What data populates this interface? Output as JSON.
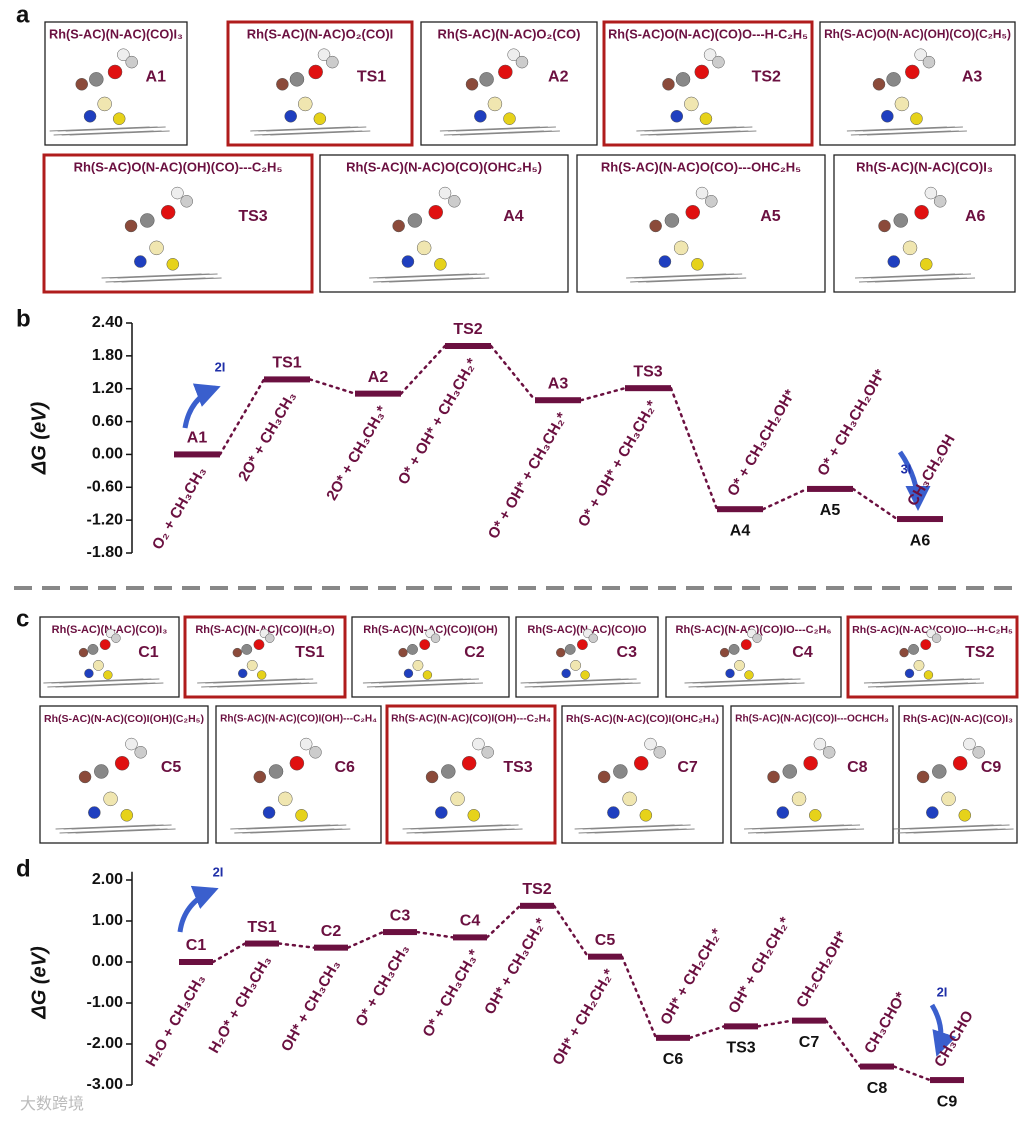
{
  "panels": {
    "a": "a",
    "b": "b",
    "c": "c",
    "d": "d"
  },
  "watermark": "大数跨境",
  "structures_a": [
    {
      "formula": "Rh(S-AC)(N-AC)(CO)I₃",
      "code": "A1"
    },
    {
      "formula": "Rh(S-AC)(N-AC)O₂(CO)I",
      "code": "TS1"
    },
    {
      "formula": "Rh(S-AC)(N-AC)O₂(CO)",
      "code": "A2"
    },
    {
      "formula": "Rh(S-AC)O(N-AC)(CO)O---H-C₂H₅",
      "code": "TS2"
    },
    {
      "formula": "Rh(S-AC)O(N-AC)(OH)(CO)(C₂H₅)",
      "code": "A3"
    },
    {
      "formula": "Rh(S-AC)O(N-AC)(OH)(CO)---C₂H₅",
      "code": "TS3"
    },
    {
      "formula": "Rh(S-AC)(N-AC)O(CO)(OHC₂H₅)",
      "code": "A4"
    },
    {
      "formula": "Rh(S-AC)(N-AC)O(CO)---OHC₂H₅",
      "code": "A5"
    },
    {
      "formula": "Rh(S-AC)(N-AC)(CO)I₃",
      "code": "A6"
    }
  ],
  "structures_c": [
    {
      "formula": "Rh(S-AC)(N-AC)(CO)I₃",
      "code": "C1"
    },
    {
      "formula": "Rh(S-AC)(N-AC)(CO)I(H₂O)",
      "code": "TS1"
    },
    {
      "formula": "Rh(S-AC)(N-AC)(CO)I(OH)",
      "code": "C2"
    },
    {
      "formula": "Rh(S-AC)(N-AC)(CO)IO",
      "code": "C3"
    },
    {
      "formula": "Rh(S-AC)(N-AC)(CO)IO---C₂H₆",
      "code": "C4"
    },
    {
      "formula": "Rh(S-AC)(N-AC)(CO)IO---H-C₂H₅",
      "code": "TS2"
    },
    {
      "formula": "Rh(S-AC)(N-AC)(CO)I(OH)(C₂H₅)",
      "code": "C5"
    },
    {
      "formula": "Rh(S-AC)(N-AC)(CO)I(OH)---C₂H₄",
      "code": "C6"
    },
    {
      "formula": "Rh(S-AC)(N-AC)(CO)I(OH)---C₂H₄",
      "code": "TS3"
    },
    {
      "formula": "Rh(S-AC)(N-AC)(CO)I(OHC₂H₄)",
      "code": "C7"
    },
    {
      "formula": "Rh(S-AC)(N-AC)(CO)I---OCHCH₃",
      "code": "C8"
    },
    {
      "formula": "Rh(S-AC)(N-AC)(CO)I₃",
      "code": "C9"
    }
  ],
  "chart_data": [
    {
      "type": "energy",
      "ylabel": "ΔG (eV)",
      "color": "#6b1040",
      "categories": [
        "A1",
        "TS1",
        "A2",
        "TS2",
        "A3",
        "TS3",
        "A4",
        "A5",
        "A6"
      ],
      "values": [
        0.0,
        1.37,
        1.11,
        1.98,
        0.99,
        1.21,
        -1.0,
        -0.63,
        -1.18
      ],
      "species": [
        "O₂ + CH₃CH₃",
        "2O* + CH₃CH₃",
        "2O* + CH₃CH₃*",
        "O* + OH* + CH₃CH₂*",
        "O* + OH* + CH₃CH₂*",
        "O* + OH* + CH₃CH₂*",
        "O* + CH₃CH₂OH*",
        "O* + CH₃CH₂OH*",
        "CH₃CH₂OH"
      ],
      "annotations": [
        "2I",
        "3I"
      ],
      "ylim": [
        -1.8,
        2.4
      ],
      "yticks": [
        {
          "value": 2.4,
          "label": "2.40"
        },
        {
          "value": 1.8,
          "label": "1.80"
        },
        {
          "value": 1.2,
          "label": "1.20"
        },
        {
          "value": 0.6,
          "label": "0.60"
        },
        {
          "value": 0,
          "label": "0.00"
        },
        {
          "value": -0.6,
          "label": "-0.60"
        },
        {
          "value": -1.2,
          "label": "-1.20"
        },
        {
          "value": -1.8,
          "label": "-1.80"
        }
      ]
    },
    {
      "type": "energy",
      "ylabel": "ΔG (eV)",
      "color": "#6b1040",
      "categories": [
        "C1",
        "TS1",
        "C2",
        "C3",
        "C4",
        "TS2",
        "C5",
        "C6",
        "TS3",
        "C7",
        "C8",
        "C9"
      ],
      "values": [
        0.0,
        0.45,
        0.35,
        0.73,
        0.6,
        1.37,
        0.13,
        -1.85,
        -1.57,
        -1.43,
        -2.55,
        -2.88
      ],
      "species": [
        "H₂O + CH₃CH₃",
        "H₂O* + CH₃CH₃",
        "OH* + CH₃CH₃",
        "O* + CH₃CH₃",
        "O* + CH₃CH₃*",
        "OH* + CH₃CH₂*",
        "OH* + CH₂CH₂*",
        "OH* + CH₂CH₂*",
        "OH* + CH₂CH₂*",
        "CH₂CH₂OH*",
        "CH₃CHO*",
        "CH₃CHO"
      ],
      "annotations": [
        "2I",
        "2I"
      ],
      "ylim": [
        -3,
        2.2
      ],
      "yticks": [
        {
          "value": 2,
          "label": "2.00"
        },
        {
          "value": 1,
          "label": "1.00"
        },
        {
          "value": 0,
          "label": "0.00"
        },
        {
          "value": -1,
          "label": "-1.00"
        },
        {
          "value": -2,
          "label": "-2.00"
        },
        {
          "value": -3,
          "label": "-3.00"
        }
      ]
    }
  ]
}
